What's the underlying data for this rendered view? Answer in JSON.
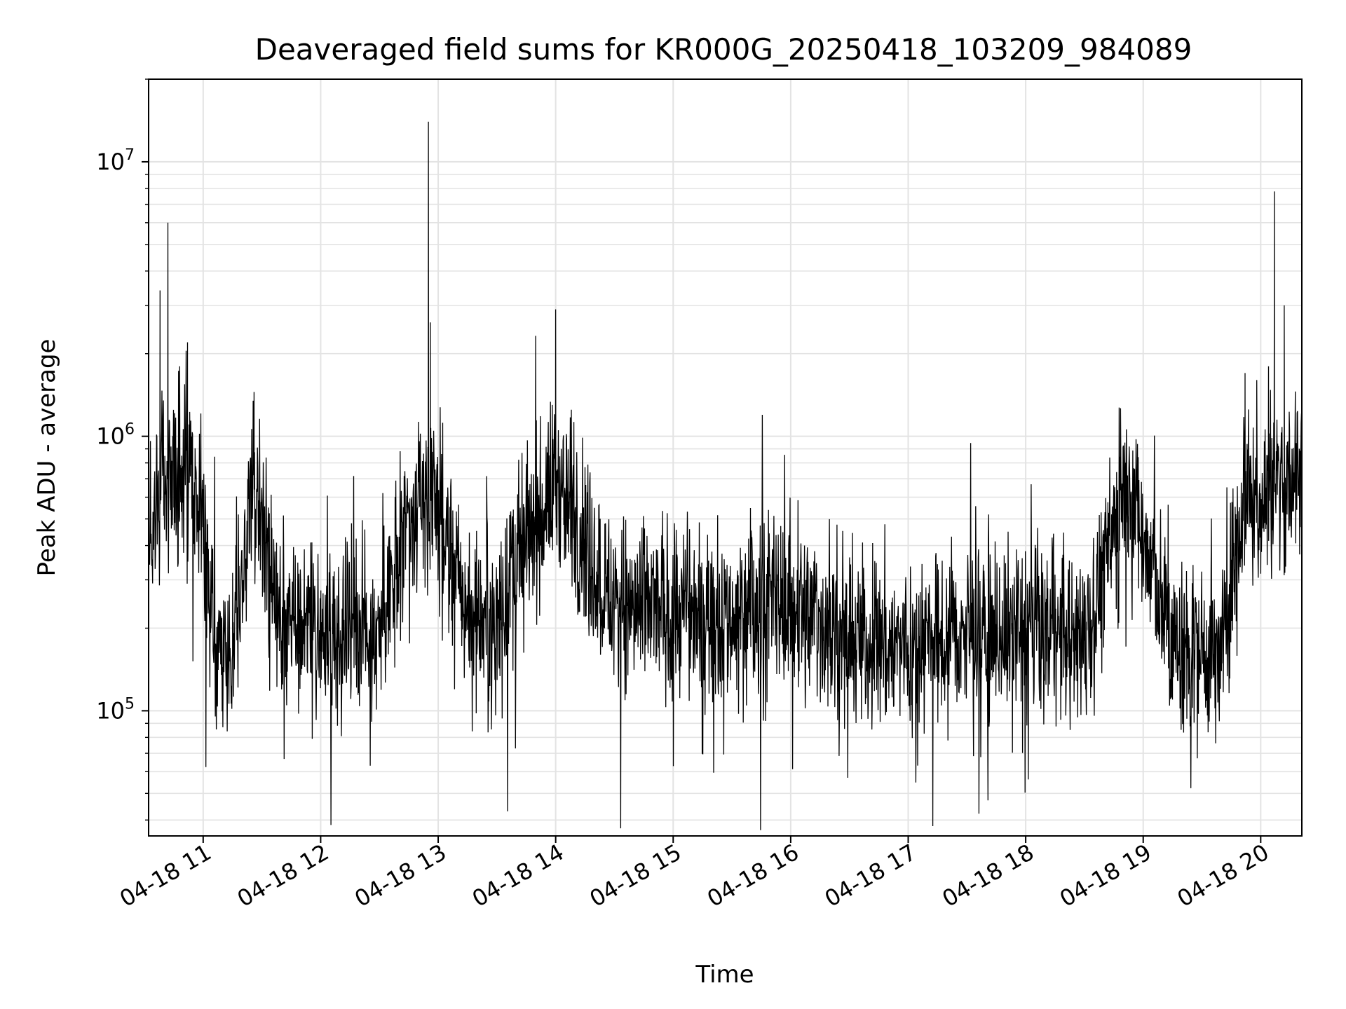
{
  "chart_data": {
    "type": "line",
    "title": "Deaveraged field sums for KR000G_20250418_103209_984089",
    "xlabel": "Time",
    "ylabel": "Peak ADU - average",
    "x_type": "datetime",
    "xlim": [
      "2025-04-18 10:32:09",
      "2025-04-18 20:21:00"
    ],
    "ylim": [
      35000,
      20000000
    ],
    "y_scale": "log",
    "grid": true,
    "line_color": "#000000",
    "x_ticks": [
      "04-18 11",
      "04-18 12",
      "04-18 13",
      "04-18 14",
      "04-18 15",
      "04-18 16",
      "04-18 17",
      "04-18 18",
      "04-18 19",
      "04-18 20"
    ],
    "y_ticks": [
      {
        "base": "10",
        "exp": "5",
        "value": 100000
      },
      {
        "base": "10",
        "exp": "6",
        "value": 1000000
      },
      {
        "base": "10",
        "exp": "7",
        "value": 10000000
      }
    ],
    "series": [
      {
        "name": "",
        "points": [
          [
            "2025-04-18 10:32:09",
            450000
          ],
          [
            "2025-04-18 10:36:00",
            600000
          ],
          [
            "2025-04-18 10:38:00",
            3400000
          ],
          [
            "2025-04-18 10:42:00",
            6000000
          ],
          [
            "2025-04-18 10:45:00",
            550000
          ],
          [
            "2025-04-18 10:48:00",
            1800000
          ],
          [
            "2025-04-18 10:52:00",
            2200000
          ],
          [
            "2025-04-18 10:55:00",
            600000
          ],
          [
            "2025-04-18 11:00:00",
            450000
          ],
          [
            "2025-04-18 11:04:00",
            200000
          ],
          [
            "2025-04-18 11:15:00",
            160000
          ],
          [
            "2025-04-18 11:26:00",
            1450000
          ],
          [
            "2025-04-18 11:40:00",
            180000
          ],
          [
            "2025-04-18 12:00:00",
            190000
          ],
          [
            "2025-04-18 12:30:00",
            210000
          ],
          [
            "2025-04-18 12:55:00",
            14000000
          ],
          [
            "2025-04-18 12:56:00",
            2600000
          ],
          [
            "2025-04-18 13:15:00",
            230000
          ],
          [
            "2025-04-18 13:30:00",
            220000
          ],
          [
            "2025-04-18 14:00:00",
            2900000
          ],
          [
            "2025-04-18 14:30:00",
            240000
          ],
          [
            "2025-04-18 15:00:00",
            230000
          ],
          [
            "2025-04-18 15:30:00",
            220000
          ],
          [
            "2025-04-18 16:00:00",
            250000
          ],
          [
            "2025-04-18 16:30:00",
            180000
          ],
          [
            "2025-04-18 17:00:00",
            170000
          ],
          [
            "2025-04-18 17:30:00",
            190000
          ],
          [
            "2025-04-18 18:00:00",
            200000
          ],
          [
            "2025-04-18 18:30:00",
            180000
          ],
          [
            "2025-04-18 18:52:00",
            720000
          ],
          [
            "2025-04-18 19:15:00",
            170000
          ],
          [
            "2025-04-18 19:40:00",
            160000
          ],
          [
            "2025-04-18 19:52:00",
            1700000
          ],
          [
            "2025-04-18 20:00:00",
            500000
          ],
          [
            "2025-04-18 20:04:00",
            1800000
          ],
          [
            "2025-04-18 20:07:00",
            7800000
          ],
          [
            "2025-04-18 20:12:00",
            3000000
          ],
          [
            "2025-04-18 20:16:00",
            900000
          ],
          [
            "2025-04-18 20:21:00",
            1000000
          ]
        ],
        "noise_band": {
          "low": 80000,
          "high": 550000
        }
      }
    ]
  }
}
